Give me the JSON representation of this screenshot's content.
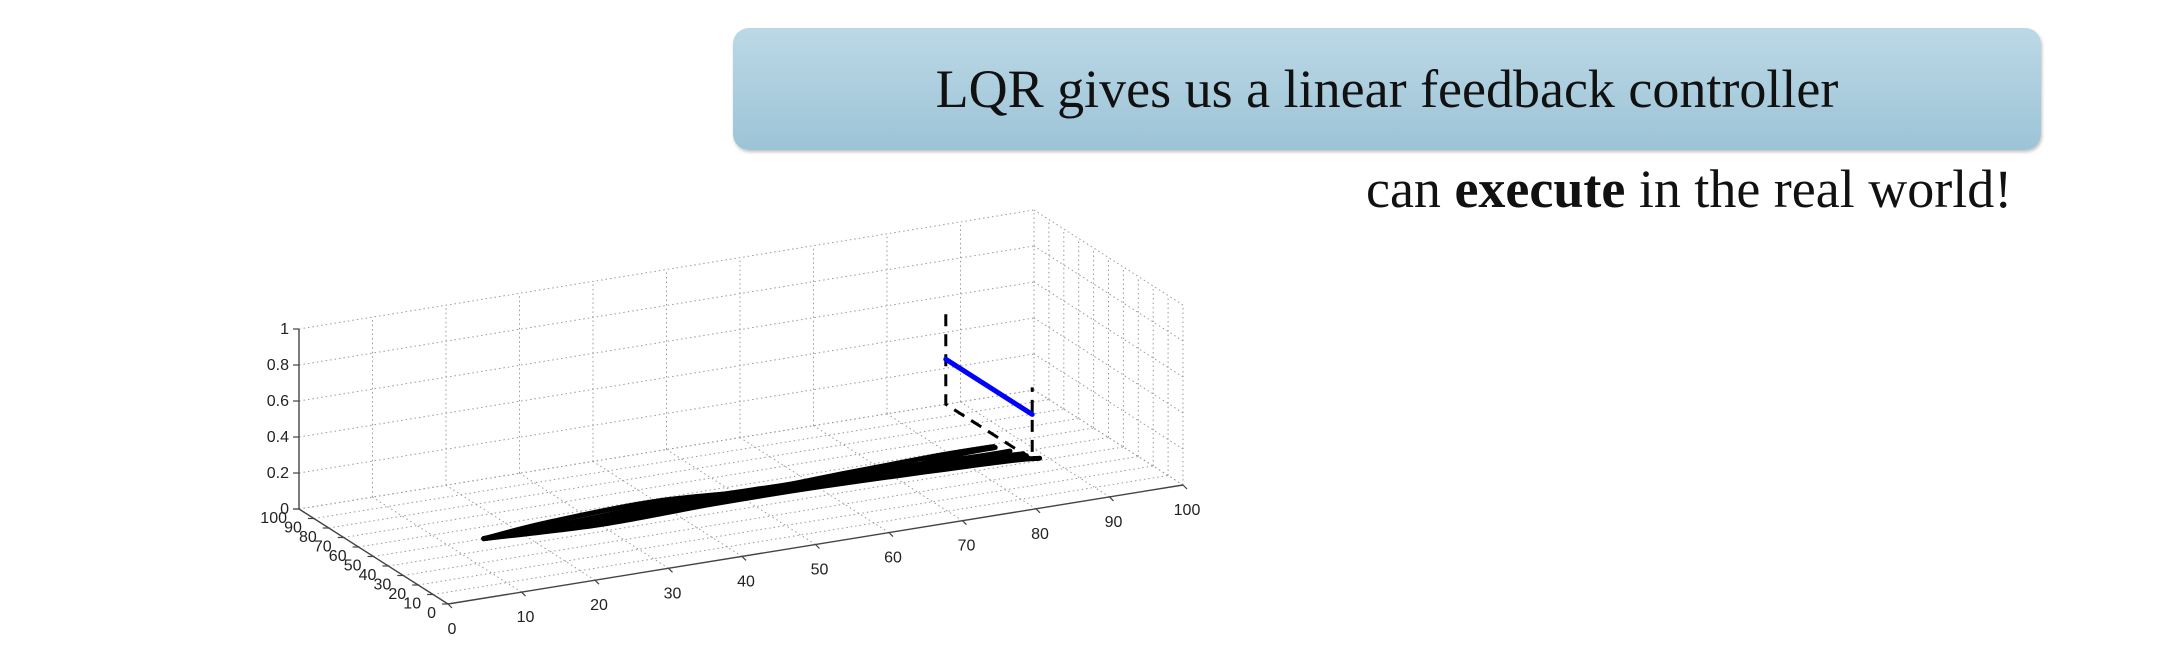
{
  "callout": {
    "text": "LQR gives us a linear feedback controller"
  },
  "caption": {
    "before": "can ",
    "emphasis": "execute",
    "after": " in the real world!"
  },
  "colors": {
    "trajectories": "#000000",
    "blue_line": "#0000ff",
    "callout_fill": "#a8cddd"
  },
  "chart_data": {
    "type": "line",
    "projection": "3d",
    "grid": true,
    "xlim": [
      0,
      100
    ],
    "ylim": [
      0,
      100
    ],
    "zlim": [
      0,
      1
    ],
    "x_ticks": [
      "0",
      "10",
      "20",
      "30",
      "40",
      "50",
      "60",
      "70",
      "80",
      "90",
      "100"
    ],
    "y_ticks": [
      "0",
      "10",
      "20",
      "30",
      "40",
      "50",
      "60",
      "70",
      "80",
      "90",
      "100"
    ],
    "z_ticks": [
      "0",
      "0.2",
      "0.4",
      "0.6",
      "0.8",
      "1"
    ],
    "blue_line": {
      "from": [
        88,
        42,
        0.25
      ],
      "to": [
        88,
        100,
        0.25
      ]
    },
    "dashed_lines": [
      [
        [
          88,
          100,
          0.5
        ],
        [
          88,
          100,
          0
        ],
        [
          88,
          42,
          0
        ],
        [
          88,
          42,
          0.4
        ]
      ]
    ],
    "series": [
      {
        "points": [
          [
            15,
            50
          ],
          [
            25,
            55
          ],
          [
            40,
            58
          ],
          [
            55,
            52
          ],
          [
            68,
            50
          ],
          [
            80,
            56
          ],
          [
            86,
            57
          ]
        ]
      },
      {
        "points": [
          [
            15,
            50
          ],
          [
            28,
            52
          ],
          [
            42,
            55
          ],
          [
            58,
            54
          ],
          [
            70,
            54
          ],
          [
            82,
            52
          ],
          [
            87,
            52
          ]
        ]
      },
      {
        "points": [
          [
            15,
            50
          ],
          [
            30,
            48
          ],
          [
            45,
            50
          ],
          [
            58,
            52
          ],
          [
            72,
            50
          ],
          [
            83,
            47
          ],
          [
            88,
            46
          ]
        ]
      },
      {
        "points": [
          [
            15,
            50
          ],
          [
            30,
            46
          ],
          [
            46,
            48
          ],
          [
            60,
            48
          ],
          [
            74,
            46
          ],
          [
            85,
            44
          ],
          [
            89,
            42
          ]
        ]
      },
      {
        "points": [
          [
            15,
            50
          ],
          [
            26,
            49
          ],
          [
            40,
            53
          ],
          [
            52,
            53
          ],
          [
            66,
            56
          ],
          [
            78,
            58
          ],
          [
            86,
            58
          ]
        ]
      },
      {
        "points": [
          [
            15,
            50
          ],
          [
            32,
            51
          ],
          [
            48,
            52
          ],
          [
            62,
            50
          ],
          [
            76,
            52
          ],
          [
            84,
            49
          ],
          [
            88,
            48
          ]
        ]
      }
    ]
  }
}
